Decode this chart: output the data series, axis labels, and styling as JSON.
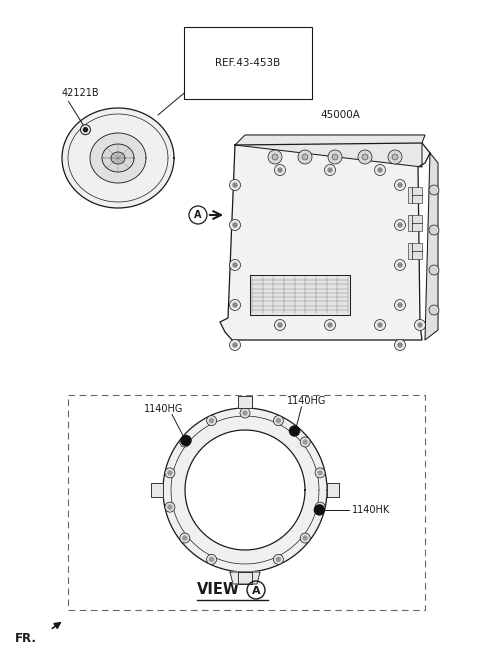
{
  "bg_color": "#ffffff",
  "line_color": "#1a1a1a",
  "label_42121B": "42121B",
  "label_ref": "REF.43-453B",
  "label_45000A": "45000A",
  "label_1140HG_1": "1140HG",
  "label_1140HG_2": "1140HG",
  "label_1140HK": "1140HK",
  "label_view": "VIEW",
  "label_A_circle": "A",
  "label_FR": "FR.",
  "fs": 7.0,
  "fs_ref": 7.5,
  "fs_view": 10.5
}
